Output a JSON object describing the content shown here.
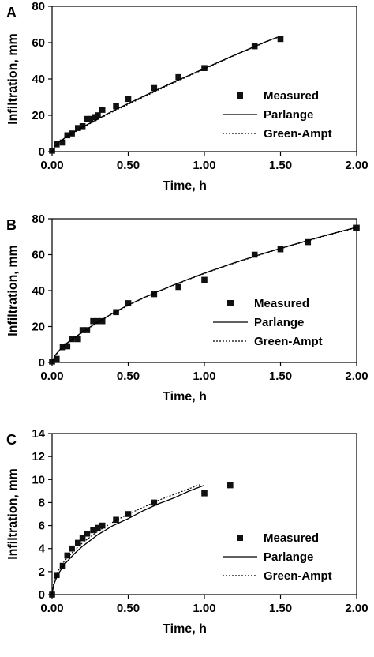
{
  "chart_data": [
    {
      "type": "scatter",
      "panel_label": "A",
      "xlabel": "Time, h",
      "ylabel": "Infiltration, mm",
      "xlim": [
        0,
        2
      ],
      "ylim": [
        0,
        80
      ],
      "x_ticks": [
        "0.00",
        "0.50",
        "1.00",
        "1.50",
        "2.00"
      ],
      "y_ticks": [
        "0",
        "20",
        "40",
        "60",
        "80"
      ],
      "legend_position": "right",
      "grid": false,
      "series": [
        {
          "name": "Measured",
          "style": "markers",
          "x": [
            0.0,
            0.03,
            0.07,
            0.1,
            0.13,
            0.17,
            0.2,
            0.23,
            0.25,
            0.28,
            0.3,
            0.33,
            0.42,
            0.5,
            0.67,
            0.83,
            1.0,
            1.33,
            1.5
          ],
          "y": [
            0.5,
            4,
            5,
            9,
            10,
            13,
            14,
            18,
            18,
            19,
            20,
            23,
            25,
            29,
            35,
            41,
            46,
            58,
            62
          ]
        },
        {
          "name": "Parlange",
          "style": "solid",
          "x": [
            0,
            0.02,
            0.05,
            0.1,
            0.2,
            0.3,
            0.4,
            0.5,
            0.6,
            0.7,
            0.8,
            0.9,
            1.0,
            1.1,
            1.2,
            1.3,
            1.4,
            1.48
          ],
          "y": [
            0,
            3.2,
            5.5,
            8.5,
            13.5,
            18.0,
            22.5,
            26.5,
            30.5,
            34.5,
            38.3,
            42.0,
            45.8,
            49.5,
            53.2,
            56.8,
            60.4,
            63.0
          ]
        },
        {
          "name": "Green-Ampt",
          "style": "dotted",
          "x": [
            0,
            0.02,
            0.05,
            0.1,
            0.2,
            0.3,
            0.4,
            0.5,
            0.6,
            0.7,
            0.8,
            0.9,
            1.0,
            1.1,
            1.2,
            1.3,
            1.4,
            1.48
          ],
          "y": [
            0,
            3.0,
            5.2,
            8.2,
            13.2,
            17.6,
            22.0,
            26.0,
            30.0,
            34.0,
            37.9,
            41.7,
            45.5,
            49.2,
            53.0,
            56.6,
            60.2,
            62.8
          ]
        }
      ]
    },
    {
      "type": "scatter",
      "panel_label": "B",
      "xlabel": "Time, h",
      "ylabel": "Infiltration, mm",
      "xlim": [
        0,
        2
      ],
      "ylim": [
        0,
        80
      ],
      "x_ticks": [
        "0.00",
        "0.50",
        "1.00",
        "1.50",
        "2.00"
      ],
      "y_ticks": [
        "0",
        "20",
        "40",
        "60",
        "80"
      ],
      "legend_position": "right",
      "grid": false,
      "series": [
        {
          "name": "Measured",
          "style": "markers",
          "x": [
            0.0,
            0.03,
            0.07,
            0.1,
            0.13,
            0.17,
            0.2,
            0.23,
            0.27,
            0.3,
            0.33,
            0.42,
            0.5,
            0.67,
            0.83,
            1.0,
            1.33,
            1.5,
            1.68,
            2.0
          ],
          "y": [
            0.5,
            2,
            8.5,
            9,
            13,
            13,
            18,
            18,
            23,
            23,
            23,
            28,
            33,
            38,
            42,
            46,
            60,
            63,
            67,
            75
          ]
        },
        {
          "name": "Parlange",
          "style": "solid",
          "x": [
            0,
            0.02,
            0.05,
            0.1,
            0.2,
            0.3,
            0.4,
            0.5,
            0.6,
            0.7,
            0.8,
            0.9,
            1.0,
            1.2,
            1.4,
            1.6,
            1.8,
            2.0
          ],
          "y": [
            0,
            4.0,
            7.0,
            11.0,
            17.0,
            22.5,
            27.5,
            32.0,
            36.0,
            39.7,
            43.2,
            46.5,
            49.7,
            55.6,
            61.0,
            66.0,
            70.8,
            75.3
          ]
        },
        {
          "name": "Green-Ampt",
          "style": "dotted",
          "x": [
            0,
            0.02,
            0.05,
            0.1,
            0.2,
            0.3,
            0.4,
            0.5,
            0.6,
            0.7,
            0.8,
            0.9,
            1.0,
            1.2,
            1.4,
            1.6,
            1.8,
            2.0
          ],
          "y": [
            0,
            3.8,
            6.8,
            10.8,
            16.8,
            22.2,
            27.2,
            31.7,
            35.8,
            39.5,
            43.0,
            46.3,
            49.5,
            55.4,
            60.8,
            65.8,
            70.6,
            75.0
          ]
        }
      ]
    },
    {
      "type": "scatter",
      "panel_label": "C",
      "xlabel": "Time, h",
      "ylabel": "Infiltration, mm",
      "xlim": [
        0,
        2
      ],
      "ylim": [
        0,
        14
      ],
      "x_ticks": [
        "0.00",
        "0.50",
        "1.00",
        "1.50",
        "2.00"
      ],
      "y_ticks": [
        "0",
        "2",
        "4",
        "6",
        "8",
        "10",
        "12",
        "14"
      ],
      "legend_position": "right",
      "grid": false,
      "series": [
        {
          "name": "Measured",
          "style": "markers",
          "x": [
            0.0,
            0.03,
            0.07,
            0.1,
            0.13,
            0.17,
            0.2,
            0.23,
            0.27,
            0.3,
            0.33,
            0.42,
            0.5,
            0.67,
            1.0,
            1.17
          ],
          "y": [
            0.0,
            1.7,
            2.5,
            3.4,
            4.0,
            4.5,
            4.9,
            5.3,
            5.6,
            5.8,
            6.0,
            6.5,
            7.0,
            8.0,
            8.8,
            9.5
          ]
        },
        {
          "name": "Parlange",
          "style": "solid",
          "x": [
            0,
            0.01,
            0.03,
            0.05,
            0.08,
            0.1,
            0.15,
            0.2,
            0.25,
            0.3,
            0.4,
            0.5,
            0.6,
            0.7,
            0.8,
            0.9,
            1.0
          ],
          "y": [
            0,
            0.8,
            1.5,
            2.0,
            2.6,
            2.9,
            3.6,
            4.2,
            4.7,
            5.2,
            6.0,
            6.6,
            7.3,
            7.9,
            8.4,
            9.0,
            9.5
          ]
        },
        {
          "name": "Green-Ampt",
          "style": "dotted",
          "x": [
            0,
            0.01,
            0.03,
            0.05,
            0.08,
            0.1,
            0.15,
            0.2,
            0.25,
            0.3,
            0.4,
            0.5,
            0.6,
            0.7,
            0.8,
            0.9,
            0.98
          ],
          "y": [
            0,
            1.0,
            1.8,
            2.3,
            2.9,
            3.2,
            3.9,
            4.5,
            5.0,
            5.5,
            6.3,
            7.0,
            7.6,
            8.2,
            8.7,
            9.2,
            9.6
          ]
        }
      ]
    }
  ]
}
